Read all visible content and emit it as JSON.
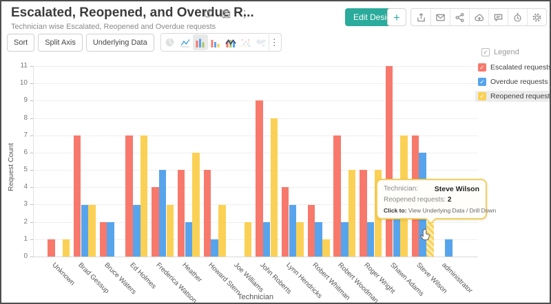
{
  "header": {
    "title": "Escalated, Reopened, and Overdue R...",
    "subtitle": "Technician wise Escalated, Reopened and Overdue requests",
    "edit_design": "Edit Design",
    "add": "+"
  },
  "toolbar": {
    "sort": "Sort",
    "split_axis": "Split Axis",
    "underlying_data": "Underlying Data"
  },
  "legend": {
    "title": "Legend",
    "items": [
      {
        "label": "Escalated requests",
        "color": "#F7796C",
        "checked": true,
        "highlighted": false
      },
      {
        "label": "Overdue requests",
        "color": "#57A4EC",
        "checked": true,
        "highlighted": false
      },
      {
        "label": "Reopened requests",
        "color": "#FBD155",
        "checked": true,
        "highlighted": true
      }
    ]
  },
  "tooltip": {
    "technician_label": "Technician:",
    "technician_value": "Steve Wilson",
    "metric_label": "Reopened requests:",
    "metric_value": "2",
    "click_label": "Click to:",
    "click_value": "View Underlying Data / Drill Down"
  },
  "chart_data": {
    "type": "bar",
    "title": "Escalated, Reopened, and Overdue Requests",
    "xlabel": "Technician",
    "ylabel": "Request Count",
    "ylim": [
      0,
      11
    ],
    "y_ticks": [
      0,
      1,
      2,
      3,
      4,
      5,
      6,
      7,
      8,
      9,
      10,
      11
    ],
    "grid": true,
    "legend_position": "top-right",
    "categories": [
      "Unknown",
      "Brad Gessup",
      "Bruce Waters",
      "Ed Holmes",
      "Frederica Watson",
      "Heather",
      "Howard Stern",
      "Joe Williams",
      "John Roberts",
      "Lynn Hendricks",
      "Robert Whitman",
      "Robert Woodman",
      "Roger Wright",
      "Shawn Adams",
      "Steve Wilson",
      "administrator"
    ],
    "series": [
      {
        "name": "Escalated requests",
        "color": "#F7796C",
        "values": [
          1,
          7,
          2,
          7,
          4,
          5,
          5,
          null,
          9,
          4,
          3,
          7,
          5,
          11,
          7,
          null
        ]
      },
      {
        "name": "Overdue requests",
        "color": "#57A4EC",
        "values": [
          null,
          3,
          2,
          3,
          5,
          2,
          1,
          null,
          2,
          3,
          2,
          2,
          2,
          3,
          6,
          1
        ]
      },
      {
        "name": "Reopened requests",
        "color": "#FBD155",
        "values": [
          1,
          3,
          null,
          7,
          3,
          6,
          3,
          2,
          8,
          2,
          1,
          5,
          5,
          7,
          2,
          null
        ]
      }
    ],
    "highlighted_bar": {
      "category": "Steve Wilson",
      "series": "Reopened requests",
      "value": 2
    }
  }
}
